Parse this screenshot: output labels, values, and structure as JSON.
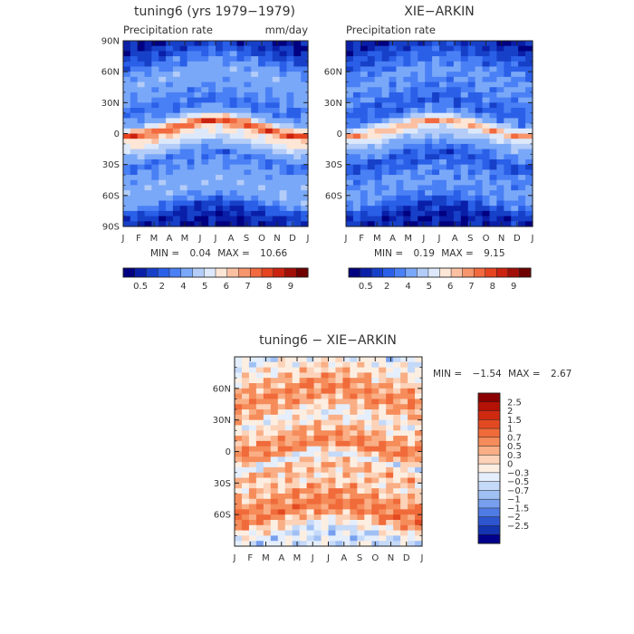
{
  "chart_data": [
    {
      "type": "heatmap",
      "title": "tuning6 (yrs 1979−1979)",
      "subtitle_left": "Precipitation rate",
      "subtitle_right": "mm/day",
      "x_ticks": [
        "J",
        "F",
        "M",
        "A",
        "M",
        "J",
        "J",
        "A",
        "S",
        "O",
        "N",
        "D",
        "J"
      ],
      "y_ticks": [
        "90N",
        "60N",
        "30N",
        "0",
        "30S",
        "60S",
        "90S"
      ],
      "ylim": [
        -90,
        90
      ],
      "stats": {
        "min_label": "MIN =",
        "min": "0.04",
        "max_label": "MAX =",
        "max": "10.66"
      },
      "colorbar": {
        "levels": [
          "0.5",
          "2",
          "4",
          "5",
          "6",
          "7",
          "8",
          "9"
        ],
        "colors": [
          "#000080",
          "#0a1fa8",
          "#1740c8",
          "#2a5fe8",
          "#4a80f5",
          "#7aa8f8",
          "#b3ccf8",
          "#dde9fb",
          "#fde6d6",
          "#fbc0a2",
          "#f7956c",
          "#f26a3f",
          "#e64420",
          "#cc2210",
          "#a11008",
          "#6e0000"
        ]
      },
      "bands": [
        {
          "lat": 90,
          "value": 0.3
        },
        {
          "lat": 80,
          "value": 0.8
        },
        {
          "lat": 70,
          "value": 1.6
        },
        {
          "lat": 55,
          "value": 2.6
        },
        {
          "lat": 40,
          "value": 2.2
        },
        {
          "lat": 25,
          "value": 1.4
        },
        {
          "lat": 15,
          "value": 2.6
        },
        {
          "lat": 5,
          "value": 7.5
        },
        {
          "lat": 0,
          "value": 5.5
        },
        {
          "lat": -5,
          "value": 5.0
        },
        {
          "lat": -15,
          "value": 3.0
        },
        {
          "lat": -25,
          "value": 1.5
        },
        {
          "lat": -40,
          "value": 2.4
        },
        {
          "lat": -55,
          "value": 2.8
        },
        {
          "lat": -65,
          "value": 2.0
        },
        {
          "lat": -75,
          "value": 0.8
        },
        {
          "lat": -90,
          "value": 0.2
        }
      ]
    },
    {
      "type": "heatmap",
      "title": "XIE−ARKIN",
      "subtitle_left": "Precipitation rate",
      "x_ticks": [
        "J",
        "F",
        "M",
        "A",
        "M",
        "J",
        "J",
        "A",
        "S",
        "O",
        "N",
        "D",
        "J"
      ],
      "y_ticks": [
        "60N",
        "30N",
        "0",
        "30S",
        "60S"
      ],
      "ylim": [
        -90,
        90
      ],
      "stats": {
        "min_label": "MIN =",
        "min": "0.19",
        "max_label": "MAX =",
        "max": "9.15"
      },
      "colorbar": {
        "levels": [
          "0.5",
          "2",
          "4",
          "5",
          "6",
          "7",
          "8",
          "9"
        ],
        "colors": [
          "#000080",
          "#0a1fa8",
          "#1740c8",
          "#2a5fe8",
          "#4a80f5",
          "#7aa8f8",
          "#b3ccf8",
          "#dde9fb",
          "#fde6d6",
          "#fbc0a2",
          "#f7956c",
          "#f26a3f",
          "#e64420",
          "#cc2210",
          "#a11008",
          "#6e0000"
        ]
      },
      "bands": [
        {
          "lat": 90,
          "value": 0.4
        },
        {
          "lat": 80,
          "value": 0.9
        },
        {
          "lat": 70,
          "value": 1.4
        },
        {
          "lat": 55,
          "value": 2.2
        },
        {
          "lat": 40,
          "value": 1.8
        },
        {
          "lat": 25,
          "value": 1.2
        },
        {
          "lat": 15,
          "value": 2.0
        },
        {
          "lat": 5,
          "value": 6.5
        },
        {
          "lat": 0,
          "value": 4.5
        },
        {
          "lat": -5,
          "value": 3.5
        },
        {
          "lat": -15,
          "value": 2.2
        },
        {
          "lat": -25,
          "value": 1.0
        },
        {
          "lat": -40,
          "value": 1.8
        },
        {
          "lat": -55,
          "value": 2.2
        },
        {
          "lat": -65,
          "value": 1.6
        },
        {
          "lat": -75,
          "value": 0.6
        },
        {
          "lat": -90,
          "value": 0.3
        }
      ]
    },
    {
      "type": "heatmap",
      "title": "tuning6 − XIE−ARKIN",
      "x_ticks": [
        "J",
        "F",
        "M",
        "A",
        "M",
        "J",
        "J",
        "A",
        "S",
        "O",
        "N",
        "D",
        "J"
      ],
      "y_ticks": [
        "60N",
        "30N",
        "0",
        "30S",
        "60S"
      ],
      "ylim": [
        -90,
        90
      ],
      "stats": {
        "min_label": "MIN =",
        "min": "−1.54",
        "max_label": "MAX =",
        "max": "2.67"
      },
      "colorbar": {
        "levels": [
          "2.5",
          "2",
          "1.5",
          "1",
          "0.7",
          "0.5",
          "0.3",
          "0",
          "−0.3",
          "−0.5",
          "−0.7",
          "−1",
          "−1.5",
          "−2",
          "−2.5"
        ],
        "colors": [
          "#8b0000",
          "#b41205",
          "#cf2a10",
          "#e34a22",
          "#f06a3a",
          "#f58c5a",
          "#f9ae85",
          "#fcd2b8",
          "#fdeee2",
          "#e4eefc",
          "#c5d9f8",
          "#a0c0f4",
          "#779fee",
          "#4f7be4",
          "#2d55cf",
          "#1535b0",
          "#00008b"
        ]
      },
      "bands": [
        {
          "lat": 90,
          "value": -0.1
        },
        {
          "lat": 78,
          "value": 0.2
        },
        {
          "lat": 68,
          "value": 0.5
        },
        {
          "lat": 55,
          "value": 0.9
        },
        {
          "lat": 42,
          "value": 0.6
        },
        {
          "lat": 30,
          "value": 0.0
        },
        {
          "lat": 20,
          "value": 0.4
        },
        {
          "lat": 8,
          "value": 0.9
        },
        {
          "lat": 0,
          "value": 1.0
        },
        {
          "lat": -8,
          "value": -0.2
        },
        {
          "lat": -18,
          "value": 0.6
        },
        {
          "lat": -30,
          "value": 0.3
        },
        {
          "lat": -45,
          "value": 0.8
        },
        {
          "lat": -58,
          "value": 1.1
        },
        {
          "lat": -70,
          "value": 0.3
        },
        {
          "lat": -80,
          "value": -0.3
        },
        {
          "lat": -90,
          "value": -0.2
        }
      ]
    }
  ]
}
